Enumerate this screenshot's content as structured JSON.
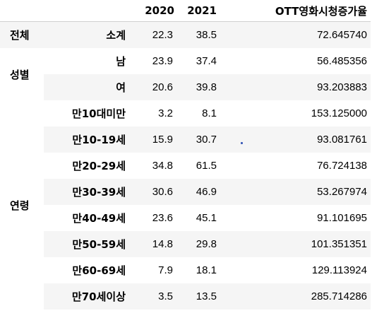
{
  "columns": [
    "2020",
    "2021",
    "OTT영화시청증가율"
  ],
  "groups": {
    "total": "전체",
    "gender": "성별",
    "age": "연령"
  },
  "rows": [
    {
      "sub": "소계",
      "y2020": "22.3",
      "y2021": "38.5",
      "rate": "72.645740"
    },
    {
      "sub": "남",
      "y2020": "23.9",
      "y2021": "37.4",
      "rate": "56.485356"
    },
    {
      "sub": "여",
      "y2020": "20.6",
      "y2021": "39.8",
      "rate": "93.203883"
    },
    {
      "sub": "만10대미만",
      "y2020": "3.2",
      "y2021": "8.1",
      "rate": "153.125000"
    },
    {
      "sub": "만10-19세",
      "y2020": "15.9",
      "y2021": "30.7",
      "rate": "93.081761"
    },
    {
      "sub": "만20-29세",
      "y2020": "34.8",
      "y2021": "61.5",
      "rate": "76.724138"
    },
    {
      "sub": "만30-39세",
      "y2020": "30.6",
      "y2021": "46.9",
      "rate": "53.267974"
    },
    {
      "sub": "만40-49세",
      "y2020": "23.6",
      "y2021": "45.1",
      "rate": "91.101695"
    },
    {
      "sub": "만50-59세",
      "y2020": "14.8",
      "y2021": "29.8",
      "rate": "101.351351"
    },
    {
      "sub": "만60-69세",
      "y2020": "7.9",
      "y2021": "18.1",
      "rate": "129.113924"
    },
    {
      "sub": "만70세이상",
      "y2020": "3.5",
      "y2021": "13.5",
      "rate": "285.714286"
    }
  ]
}
